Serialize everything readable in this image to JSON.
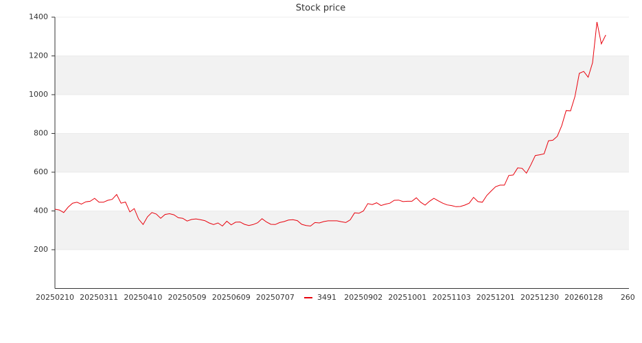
{
  "chart_data": {
    "type": "line",
    "title": "Stock price",
    "categories": [
      "20250210",
      null,
      null,
      null,
      null,
      null,
      null,
      null,
      null,
      null,
      "20250311",
      null,
      null,
      null,
      null,
      null,
      null,
      null,
      null,
      null,
      "20250410",
      null,
      null,
      null,
      null,
      null,
      null,
      null,
      null,
      null,
      "20250509",
      null,
      null,
      null,
      null,
      null,
      null,
      null,
      null,
      null,
      "20250609",
      null,
      null,
      null,
      null,
      null,
      null,
      null,
      null,
      null,
      "20250707",
      null,
      null,
      null,
      null,
      null,
      null,
      null,
      null,
      null,
      null,
      null,
      null,
      null,
      null,
      null,
      null,
      null,
      null,
      null,
      "20250902",
      null,
      null,
      null,
      null,
      null,
      null,
      null,
      null,
      null,
      "20251001",
      null,
      null,
      null,
      null,
      null,
      null,
      null,
      null,
      null,
      "20251103",
      null,
      null,
      null,
      null,
      null,
      null,
      null,
      null,
      null,
      "20251201",
      null,
      null,
      null,
      null,
      null,
      null,
      null,
      null,
      null,
      "20251230",
      null,
      null,
      null,
      null,
      null,
      null,
      null,
      null,
      null,
      "20260128",
      null,
      null,
      null,
      null,
      null,
      null,
      null,
      null,
      null,
      "260"
    ],
    "series": [
      {
        "name": "3491",
        "color": "#e8000b",
        "values": [
          409,
          405,
          392,
          420,
          440,
          445,
          435,
          447,
          450,
          465,
          445,
          445,
          455,
          460,
          485,
          440,
          446,
          395,
          412,
          358,
          330,
          370,
          392,
          384,
          362,
          382,
          386,
          380,
          365,
          362,
          348,
          356,
          359,
          355,
          350,
          338,
          330,
          338,
          322,
          347,
          328,
          342,
          343,
          331,
          325,
          330,
          339,
          360,
          343,
          331,
          330,
          340,
          345,
          353,
          355,
          350,
          331,
          325,
          322,
          340,
          338,
          345,
          349,
          349,
          349,
          344,
          340,
          354,
          390,
          388,
          400,
          438,
          433,
          442,
          428,
          435,
          440,
          455,
          456,
          448,
          450,
          450,
          468,
          445,
          430,
          450,
          465,
          452,
          440,
          431,
          428,
          422,
          423,
          430,
          440,
          470,
          448,
          445,
          480,
          503,
          525,
          533,
          533,
          583,
          586,
          622,
          620,
          595,
          638,
          686,
          690,
          695,
          762,
          765,
          785,
          840,
          918,
          916,
          990,
          1110,
          1120,
          1090,
          1165,
          1375,
          1262,
          1308,
          null,
          null,
          null,
          null,
          null
        ]
      }
    ],
    "ylim": [
      0,
      1400
    ],
    "yticks": [
      200,
      400,
      600,
      800,
      1000,
      1200,
      1400
    ],
    "grid": true,
    "band_color": "#f2f2f2"
  }
}
